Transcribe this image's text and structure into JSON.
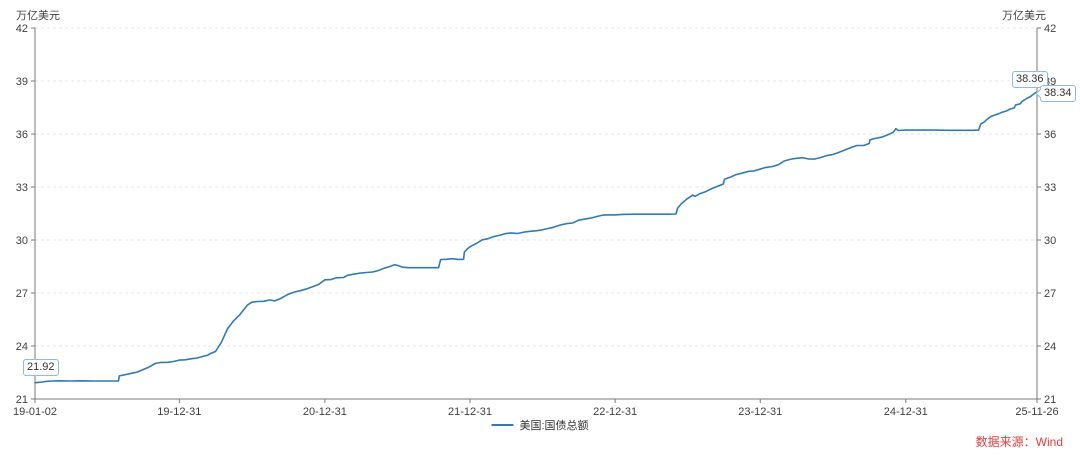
{
  "header": {
    "unit_left": "万亿美元",
    "unit_right": "万亿美元"
  },
  "legend": {
    "label": "美国:国债总额",
    "line_color": "#2e7cb5"
  },
  "footer": {
    "source": "数据来源：Wind",
    "color": "#e43b3b"
  },
  "annotations": {
    "start": {
      "value": "21.92"
    },
    "max": {
      "value": "38.36"
    },
    "last": {
      "value": "38.34"
    }
  },
  "colors": {
    "axis": "#7a7a7a",
    "grid": "#e4e4e4",
    "tick_text": "#404040",
    "line": "#2e7cb5"
  },
  "chart_data": {
    "type": "line",
    "title": "",
    "xlabel": "",
    "ylabel": "万亿美元",
    "ylim": [
      21,
      42
    ],
    "y_ticks": [
      21,
      24,
      27,
      30,
      33,
      36,
      39,
      42
    ],
    "x_range": [
      "2019-01-02",
      "2025-11-26"
    ],
    "x_ticks": [
      {
        "date": "2019-01-02",
        "label": "19-01-02"
      },
      {
        "date": "2019-12-31",
        "label": "19-12-31"
      },
      {
        "date": "2020-12-31",
        "label": "20-12-31"
      },
      {
        "date": "2021-12-31",
        "label": "21-12-31"
      },
      {
        "date": "2022-12-31",
        "label": "22-12-31"
      },
      {
        "date": "2023-12-31",
        "label": "23-12-31"
      },
      {
        "date": "2024-12-31",
        "label": "24-12-31"
      },
      {
        "date": "2025-11-26",
        "label": "25-11-26"
      }
    ],
    "grid": "horizontal-dashed",
    "legend_position": "bottom-center",
    "series": [
      {
        "name": "美国:国债总额",
        "color": "#2e7cb5",
        "points": [
          [
            "2019-01-02",
            21.92
          ],
          [
            "2019-01-10",
            21.94
          ],
          [
            "2019-01-20",
            21.96
          ],
          [
            "2019-02-01",
            22.0
          ],
          [
            "2019-02-15",
            22.02
          ],
          [
            "2019-03-04",
            22.03
          ],
          [
            "2019-04-01",
            22.02
          ],
          [
            "2019-05-01",
            22.03
          ],
          [
            "2019-06-03",
            22.02
          ],
          [
            "2019-07-01",
            22.02
          ],
          [
            "2019-07-31",
            22.02
          ],
          [
            "2019-08-02",
            22.31
          ],
          [
            "2019-08-15",
            22.37
          ],
          [
            "2019-09-03",
            22.46
          ],
          [
            "2019-09-16",
            22.52
          ],
          [
            "2019-10-01",
            22.67
          ],
          [
            "2019-10-15",
            22.8
          ],
          [
            "2019-10-31",
            23.01
          ],
          [
            "2019-11-15",
            23.07
          ],
          [
            "2019-12-02",
            23.08
          ],
          [
            "2019-12-16",
            23.12
          ],
          [
            "2019-12-31",
            23.2
          ],
          [
            "2020-01-15",
            23.22
          ],
          [
            "2020-01-31",
            23.28
          ],
          [
            "2020-02-14",
            23.32
          ],
          [
            "2020-02-28",
            23.41
          ],
          [
            "2020-03-10",
            23.47
          ],
          [
            "2020-03-17",
            23.56
          ],
          [
            "2020-03-31",
            23.69
          ],
          [
            "2020-04-15",
            24.22
          ],
          [
            "2020-04-30",
            24.97
          ],
          [
            "2020-05-15",
            25.41
          ],
          [
            "2020-05-29",
            25.72
          ],
          [
            "2020-06-10",
            26.06
          ],
          [
            "2020-06-19",
            26.31
          ],
          [
            "2020-06-30",
            26.48
          ],
          [
            "2020-07-15",
            26.52
          ],
          [
            "2020-07-31",
            26.53
          ],
          [
            "2020-08-14",
            26.61
          ],
          [
            "2020-08-26",
            26.55
          ],
          [
            "2020-09-10",
            26.68
          ],
          [
            "2020-09-30",
            26.93
          ],
          [
            "2020-10-15",
            27.05
          ],
          [
            "2020-10-30",
            27.13
          ],
          [
            "2020-11-16",
            27.24
          ],
          [
            "2020-11-30",
            27.35
          ],
          [
            "2020-12-15",
            27.48
          ],
          [
            "2020-12-31",
            27.75
          ],
          [
            "2021-01-15",
            27.76
          ],
          [
            "2021-01-29",
            27.86
          ],
          [
            "2021-02-16",
            27.88
          ],
          [
            "2021-02-26",
            28.0
          ],
          [
            "2021-03-15",
            28.07
          ],
          [
            "2021-03-31",
            28.13
          ],
          [
            "2021-04-15",
            28.16
          ],
          [
            "2021-04-30",
            28.19
          ],
          [
            "2021-05-14",
            28.27
          ],
          [
            "2021-05-28",
            28.39
          ],
          [
            "2021-06-15",
            28.52
          ],
          [
            "2021-06-25",
            28.61
          ],
          [
            "2021-07-06",
            28.53
          ],
          [
            "2021-07-15",
            28.46
          ],
          [
            "2021-07-30",
            28.43
          ],
          [
            "2021-08-16",
            28.43
          ],
          [
            "2021-09-01",
            28.43
          ],
          [
            "2021-09-15",
            28.43
          ],
          [
            "2021-10-01",
            28.43
          ],
          [
            "2021-10-13",
            28.43
          ],
          [
            "2021-10-18",
            28.89
          ],
          [
            "2021-11-01",
            28.91
          ],
          [
            "2021-11-15",
            28.94
          ],
          [
            "2021-12-01",
            28.9
          ],
          [
            "2021-12-15",
            28.91
          ],
          [
            "2021-12-17",
            29.32
          ],
          [
            "2021-12-23",
            29.47
          ],
          [
            "2021-12-31",
            29.62
          ],
          [
            "2022-01-14",
            29.78
          ],
          [
            "2022-01-31",
            30.01
          ],
          [
            "2022-02-15",
            30.08
          ],
          [
            "2022-02-28",
            30.19
          ],
          [
            "2022-03-15",
            30.26
          ],
          [
            "2022-03-31",
            30.37
          ],
          [
            "2022-04-14",
            30.4
          ],
          [
            "2022-04-29",
            30.37
          ],
          [
            "2022-05-16",
            30.45
          ],
          [
            "2022-05-31",
            30.49
          ],
          [
            "2022-06-15",
            30.52
          ],
          [
            "2022-06-30",
            30.57
          ],
          [
            "2022-07-15",
            30.65
          ],
          [
            "2022-07-29",
            30.72
          ],
          [
            "2022-08-15",
            30.85
          ],
          [
            "2022-08-31",
            30.93
          ],
          [
            "2022-09-15",
            30.96
          ],
          [
            "2022-09-30",
            31.12
          ],
          [
            "2022-10-14",
            31.18
          ],
          [
            "2022-10-31",
            31.24
          ],
          [
            "2022-11-15",
            31.33
          ],
          [
            "2022-11-30",
            31.41
          ],
          [
            "2022-12-15",
            31.42
          ],
          [
            "2022-12-30",
            31.42
          ],
          [
            "2023-01-18",
            31.45
          ],
          [
            "2023-02-15",
            31.46
          ],
          [
            "2023-03-15",
            31.46
          ],
          [
            "2023-04-14",
            31.46
          ],
          [
            "2023-05-15",
            31.46
          ],
          [
            "2023-06-02",
            31.47
          ],
          [
            "2023-06-06",
            31.8
          ],
          [
            "2023-06-15",
            32.04
          ],
          [
            "2023-06-30",
            32.33
          ],
          [
            "2023-07-14",
            32.54
          ],
          [
            "2023-07-20",
            32.47
          ],
          [
            "2023-07-31",
            32.61
          ],
          [
            "2023-08-15",
            32.73
          ],
          [
            "2023-08-31",
            32.91
          ],
          [
            "2023-09-15",
            33.04
          ],
          [
            "2023-09-29",
            33.17
          ],
          [
            "2023-10-02",
            33.44
          ],
          [
            "2023-10-16",
            33.55
          ],
          [
            "2023-10-31",
            33.7
          ],
          [
            "2023-11-15",
            33.78
          ],
          [
            "2023-11-30",
            33.88
          ],
          [
            "2023-12-15",
            33.91
          ],
          [
            "2023-12-29",
            34.0
          ],
          [
            "2024-01-12",
            34.1
          ],
          [
            "2024-01-31",
            34.16
          ],
          [
            "2024-02-15",
            34.26
          ],
          [
            "2024-02-29",
            34.47
          ],
          [
            "2024-03-15",
            34.56
          ],
          [
            "2024-03-29",
            34.62
          ],
          [
            "2024-04-15",
            34.66
          ],
          [
            "2024-04-30",
            34.59
          ],
          [
            "2024-05-15",
            34.58
          ],
          [
            "2024-05-31",
            34.67
          ],
          [
            "2024-06-14",
            34.77
          ],
          [
            "2024-06-28",
            34.83
          ],
          [
            "2024-07-15",
            34.95
          ],
          [
            "2024-07-31",
            35.1
          ],
          [
            "2024-08-15",
            35.23
          ],
          [
            "2024-08-30",
            35.35
          ],
          [
            "2024-09-16",
            35.35
          ],
          [
            "2024-09-30",
            35.46
          ],
          [
            "2024-10-02",
            35.67
          ],
          [
            "2024-10-15",
            35.75
          ],
          [
            "2024-10-31",
            35.82
          ],
          [
            "2024-11-15",
            35.95
          ],
          [
            "2024-11-29",
            36.09
          ],
          [
            "2024-12-06",
            36.3
          ],
          [
            "2024-12-12",
            36.2
          ],
          [
            "2024-12-31",
            36.22
          ],
          [
            "2025-01-21",
            36.22
          ],
          [
            "2025-02-14",
            36.22
          ],
          [
            "2025-03-14",
            36.22
          ],
          [
            "2025-04-15",
            36.21
          ],
          [
            "2025-05-15",
            36.21
          ],
          [
            "2025-06-16",
            36.21
          ],
          [
            "2025-07-02",
            36.22
          ],
          [
            "2025-07-08",
            36.58
          ],
          [
            "2025-07-15",
            36.66
          ],
          [
            "2025-07-24",
            36.84
          ],
          [
            "2025-07-31",
            36.96
          ],
          [
            "2025-08-08",
            37.05
          ],
          [
            "2025-08-15",
            37.1
          ],
          [
            "2025-08-25",
            37.18
          ],
          [
            "2025-08-29",
            37.22
          ],
          [
            "2025-09-10",
            37.3
          ],
          [
            "2025-09-19",
            37.41
          ],
          [
            "2025-09-30",
            37.48
          ],
          [
            "2025-10-03",
            37.64
          ],
          [
            "2025-10-15",
            37.71
          ],
          [
            "2025-10-20",
            37.85
          ],
          [
            "2025-10-27",
            37.95
          ],
          [
            "2025-10-31",
            38.01
          ],
          [
            "2025-11-05",
            38.07
          ],
          [
            "2025-11-10",
            38.12
          ],
          [
            "2025-11-14",
            38.2
          ],
          [
            "2025-11-20",
            38.3
          ],
          [
            "2025-11-24",
            38.36
          ],
          [
            "2025-11-26",
            38.34
          ]
        ]
      }
    ]
  }
}
